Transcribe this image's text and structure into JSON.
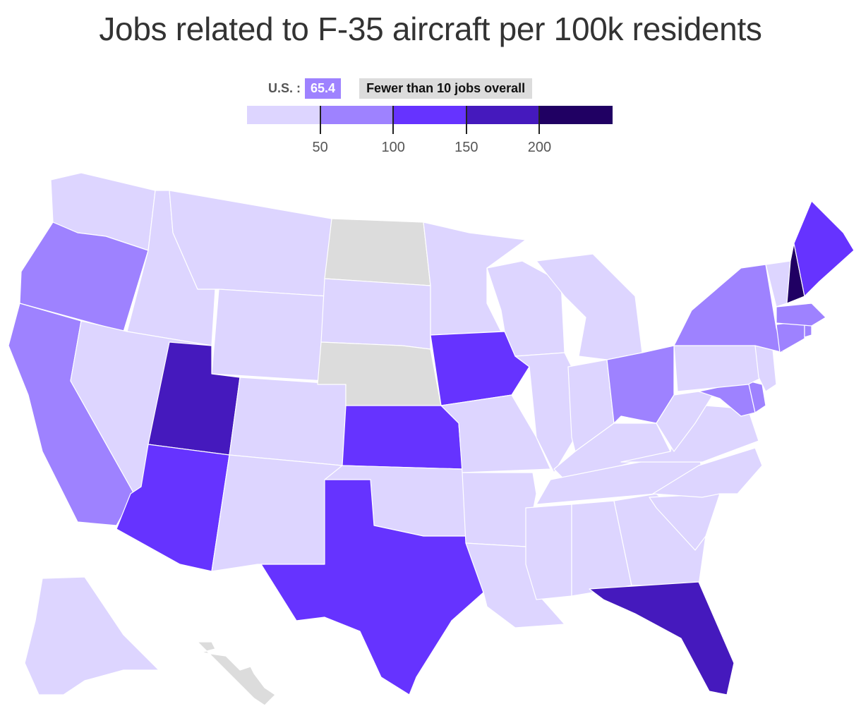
{
  "title": "Jobs related to F-35 aircraft per 100k residents",
  "legend": {
    "us_label": "U.S. :",
    "us_value": "65.4",
    "no_data_label": "Fewer than 10 jobs overall",
    "no_data_color": "#dcdcdc",
    "bins": [
      {
        "max": 50,
        "color": "#ddd5ff"
      },
      {
        "max": 100,
        "color": "#9e82ff"
      },
      {
        "max": 150,
        "color": "#6633ff"
      },
      {
        "max": 200,
        "color": "#4519bd"
      },
      {
        "max": 250,
        "color": "#200063"
      }
    ],
    "ticks": [
      "50",
      "100",
      "150",
      "200"
    ]
  },
  "chart_data": {
    "type": "choropleth",
    "title": "Jobs related to F-35 aircraft per 100k residents",
    "us_average": 65.4,
    "legend_breaks": [
      50,
      100,
      150,
      200
    ],
    "states": [
      {
        "state": "WA",
        "bin": "<50"
      },
      {
        "state": "OR",
        "bin": "50-100"
      },
      {
        "state": "CA",
        "bin": "50-100"
      },
      {
        "state": "ID",
        "bin": "<50"
      },
      {
        "state": "NV",
        "bin": "<50"
      },
      {
        "state": "MT",
        "bin": "<50"
      },
      {
        "state": "WY",
        "bin": "<50"
      },
      {
        "state": "UT",
        "bin": "150-200"
      },
      {
        "state": "AZ",
        "bin": "100-150"
      },
      {
        "state": "CO",
        "bin": "<50"
      },
      {
        "state": "NM",
        "bin": "<50"
      },
      {
        "state": "ND",
        "bin": "fewer than 10 jobs"
      },
      {
        "state": "SD",
        "bin": "<50"
      },
      {
        "state": "NE",
        "bin": "fewer than 10 jobs"
      },
      {
        "state": "KS",
        "bin": "100-150"
      },
      {
        "state": "OK",
        "bin": "<50"
      },
      {
        "state": "TX",
        "bin": "100-150"
      },
      {
        "state": "MN",
        "bin": "<50"
      },
      {
        "state": "IA",
        "bin": "100-150"
      },
      {
        "state": "MO",
        "bin": "<50"
      },
      {
        "state": "AR",
        "bin": "<50"
      },
      {
        "state": "LA",
        "bin": "<50"
      },
      {
        "state": "WI",
        "bin": "<50"
      },
      {
        "state": "IL",
        "bin": "<50"
      },
      {
        "state": "MI",
        "bin": "<50"
      },
      {
        "state": "IN",
        "bin": "<50"
      },
      {
        "state": "OH",
        "bin": "50-100"
      },
      {
        "state": "KY",
        "bin": "<50"
      },
      {
        "state": "TN",
        "bin": "<50"
      },
      {
        "state": "MS",
        "bin": "<50"
      },
      {
        "state": "AL",
        "bin": "<50"
      },
      {
        "state": "GA",
        "bin": "<50"
      },
      {
        "state": "FL",
        "bin": "150-200"
      },
      {
        "state": "SC",
        "bin": "<50"
      },
      {
        "state": "NC",
        "bin": "<50"
      },
      {
        "state": "VA",
        "bin": "<50"
      },
      {
        "state": "WV",
        "bin": "<50"
      },
      {
        "state": "MD",
        "bin": "50-100"
      },
      {
        "state": "DE",
        "bin": "50-100"
      },
      {
        "state": "PA",
        "bin": "<50"
      },
      {
        "state": "NJ",
        "bin": "<50"
      },
      {
        "state": "NY",
        "bin": "50-100"
      },
      {
        "state": "CT",
        "bin": "50-100"
      },
      {
        "state": "RI",
        "bin": "50-100"
      },
      {
        "state": "MA",
        "bin": "50-100"
      },
      {
        "state": "VT",
        "bin": "<50"
      },
      {
        "state": "NH",
        "bin": ">200"
      },
      {
        "state": "ME",
        "bin": "100-150"
      },
      {
        "state": "AK",
        "bin": "<50"
      },
      {
        "state": "HI",
        "bin": "fewer than 10 jobs"
      }
    ]
  }
}
